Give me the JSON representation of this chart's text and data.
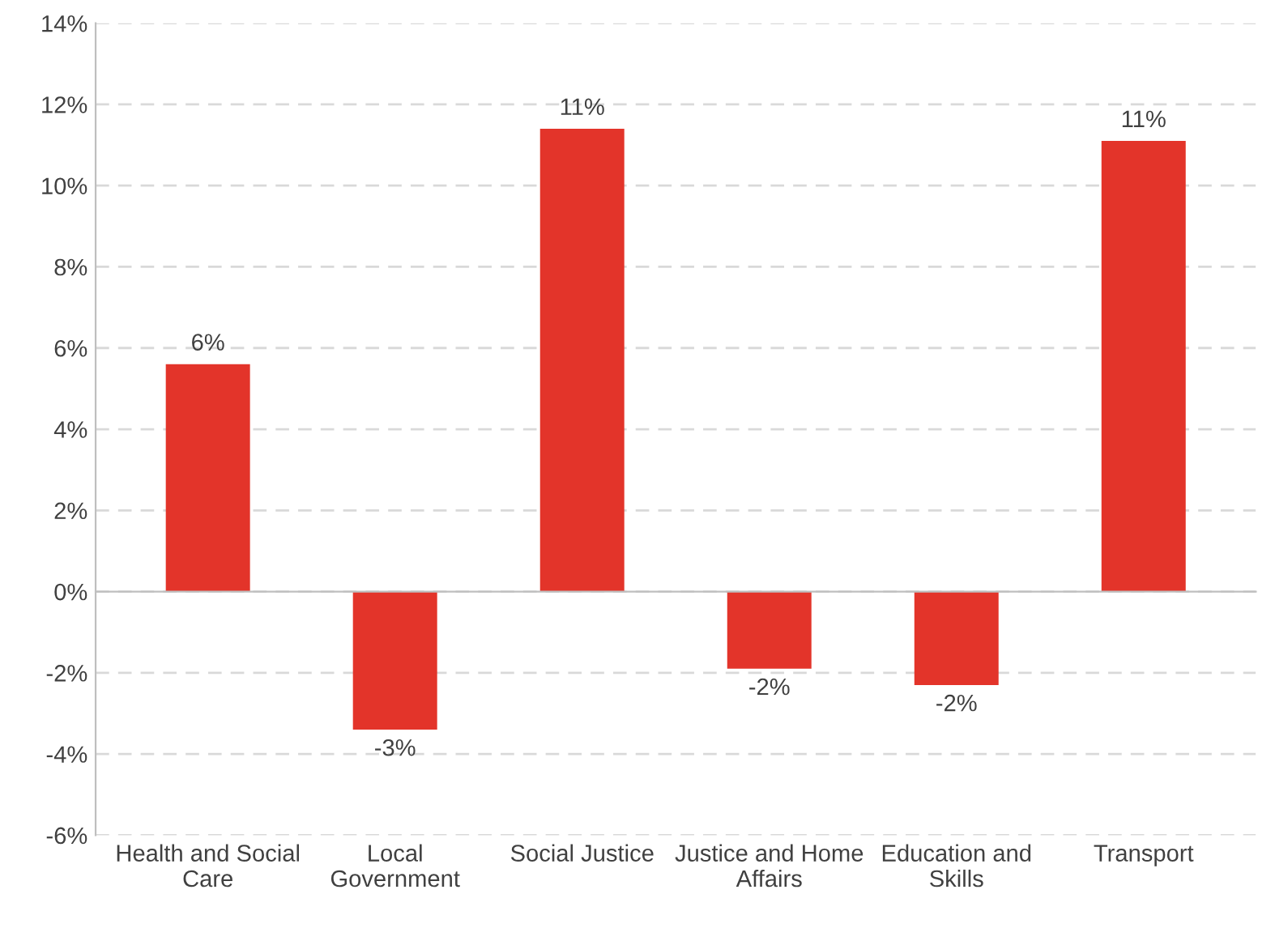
{
  "chart_data": {
    "type": "bar",
    "categories": [
      "Health and Social\nCare",
      "Local\nGovernment",
      "Social Justice",
      "Justice and Home\nAffairs",
      "Education and\nSkills",
      "Transport"
    ],
    "values": [
      5.6,
      -3.4,
      11.4,
      -1.9,
      -2.3,
      11.1
    ],
    "value_labels": [
      "6%",
      "-3%",
      "11%",
      "-2%",
      "-2%",
      "11%"
    ],
    "color": "#e3342a",
    "ylim": [
      -6,
      14
    ],
    "yticks": [
      {
        "value": -6,
        "label": "-6%"
      },
      {
        "value": -4,
        "label": "-4%"
      },
      {
        "value": -2,
        "label": "-2%"
      },
      {
        "value": 0,
        "label": "0%"
      },
      {
        "value": 2,
        "label": "2%"
      },
      {
        "value": 4,
        "label": "4%"
      },
      {
        "value": 6,
        "label": "6%"
      },
      {
        "value": 8,
        "label": "8%"
      },
      {
        "value": 10,
        "label": "10%"
      },
      {
        "value": 12,
        "label": "12%"
      },
      {
        "value": 14,
        "label": "14%"
      }
    ],
    "grid": "y"
  }
}
